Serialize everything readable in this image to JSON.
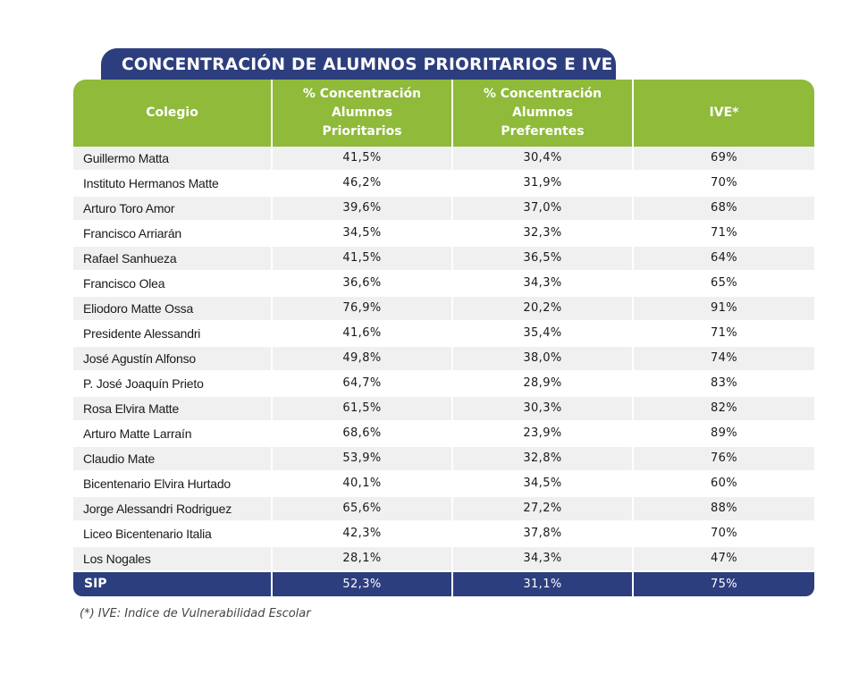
{
  "title": "CONCENTRACIÓN DE ALUMNOS PRIORITARIOS E IVE",
  "headers": [
    "Colegio",
    "% Concentración\nAlumnos\nPrioritarios",
    "% Concentración\nAlumnos\nPreferentes",
    "IVE*"
  ],
  "rows": [
    [
      "Guillermo Matta",
      "41,5%",
      "30,4%",
      "69%"
    ],
    [
      "Instituto Hermanos Matte",
      "46,2%",
      "31,9%",
      "70%"
    ],
    [
      "Arturo Toro Amor",
      "39,6%",
      "37,0%",
      "68%"
    ],
    [
      "Francisco Arriarán",
      "34,5%",
      "32,3%",
      "71%"
    ],
    [
      "Rafael Sanhueza",
      "41,5%",
      "36,5%",
      "64%"
    ],
    [
      "Francisco Olea",
      "36,6%",
      "34,3%",
      "65%"
    ],
    [
      "Eliodoro Matte Ossa",
      "76,9%",
      "20,2%",
      "91%"
    ],
    [
      "Presidente Alessandri",
      "41,6%",
      "35,4%",
      "71%"
    ],
    [
      "José Agustín Alfonso",
      "49,8%",
      "38,0%",
      "74%"
    ],
    [
      "P. José Joaquín Prieto",
      "64,7%",
      "28,9%",
      "83%"
    ],
    [
      "Rosa Elvira Matte",
      "61,5%",
      "30,3%",
      "82%"
    ],
    [
      "Arturo Matte Larraín",
      "68,6%",
      "23,9%",
      "89%"
    ],
    [
      "Claudio Mate",
      "53,9%",
      "32,8%",
      "76%"
    ],
    [
      "Bicentenario Elvira Hurtado",
      "40,1%",
      "34,5%",
      "60%"
    ],
    [
      "Jorge Alessandri Rodriguez",
      "65,6%",
      "27,2%",
      "88%"
    ],
    [
      "Liceo Bicentenario Italia",
      "42,3%",
      "37,8%",
      "70%"
    ],
    [
      "Los Nogales",
      "28,1%",
      "34,3%",
      "47%"
    ]
  ],
  "total": [
    "SIP",
    "52,3%",
    "31,1%",
    "75%"
  ],
  "footnote": "(*) IVE: Indice de Vulnerabilidad Escolar",
  "colors": {
    "navy": "#2d3e7e",
    "green": "#8fba3a",
    "row_shade": "#f0f0f0"
  }
}
